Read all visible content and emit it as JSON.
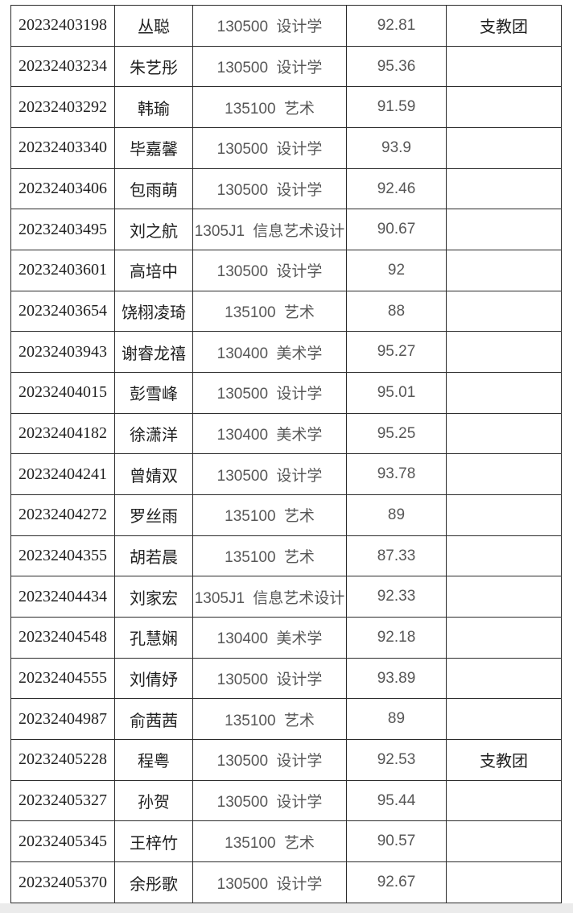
{
  "colors": {
    "text_primary": "#1f1f1f",
    "text_secondary": "#575757",
    "border": "#2b2b2b",
    "page_bg": "#ffffff",
    "footer_strip": "#ebebeb"
  },
  "table": {
    "note_label_value": "支教团",
    "rows": [
      {
        "id": "20232403198",
        "name": "丛聪",
        "major": "130500 设计学",
        "score": "92.81",
        "note": "支教团"
      },
      {
        "id": "20232403234",
        "name": "朱艺彤",
        "major": "130500 设计学",
        "score": "95.36",
        "note": ""
      },
      {
        "id": "20232403292",
        "name": "韩瑜",
        "major": "135100 艺术",
        "score": "91.59",
        "note": ""
      },
      {
        "id": "20232403340",
        "name": "毕嘉馨",
        "major": "130500 设计学",
        "score": "93.9",
        "note": ""
      },
      {
        "id": "20232403406",
        "name": "包雨萌",
        "major": "130500 设计学",
        "score": "92.46",
        "note": ""
      },
      {
        "id": "20232403495",
        "name": "刘之航",
        "major": "1305J1 信息艺术设计",
        "score": "90.67",
        "note": ""
      },
      {
        "id": "20232403601",
        "name": "高培中",
        "major": "130500 设计学",
        "score": "92",
        "note": ""
      },
      {
        "id": "20232403654",
        "name": "饶栩凌琦",
        "major": "135100 艺术",
        "score": "88",
        "note": ""
      },
      {
        "id": "20232403943",
        "name": "谢睿龙禧",
        "major": "130400 美术学",
        "score": "95.27",
        "note": ""
      },
      {
        "id": "20232404015",
        "name": "彭雪峰",
        "major": "130500 设计学",
        "score": "95.01",
        "note": ""
      },
      {
        "id": "20232404182",
        "name": "徐潇洋",
        "major": "130400 美术学",
        "score": "95.25",
        "note": ""
      },
      {
        "id": "20232404241",
        "name": "曾婧双",
        "major": "130500 设计学",
        "score": "93.78",
        "note": ""
      },
      {
        "id": "20232404272",
        "name": "罗丝雨",
        "major": "135100 艺术",
        "score": "89",
        "note": ""
      },
      {
        "id": "20232404355",
        "name": "胡若晨",
        "major": "135100 艺术",
        "score": "87.33",
        "note": ""
      },
      {
        "id": "20232404434",
        "name": "刘家宏",
        "major": "1305J1 信息艺术设计",
        "score": "92.33",
        "note": ""
      },
      {
        "id": "20232404548",
        "name": "孔慧娴",
        "major": "130400 美术学",
        "score": "92.18",
        "note": ""
      },
      {
        "id": "20232404555",
        "name": "刘倩妤",
        "major": "130500 设计学",
        "score": "93.89",
        "note": ""
      },
      {
        "id": "20232404987",
        "name": "俞茜茜",
        "major": "135100 艺术",
        "score": "89",
        "note": ""
      },
      {
        "id": "20232405228",
        "name": "程粤",
        "major": "130500 设计学",
        "score": "92.53",
        "note": "支教团"
      },
      {
        "id": "20232405327",
        "name": "孙贺",
        "major": "130500 设计学",
        "score": "95.44",
        "note": ""
      },
      {
        "id": "20232405345",
        "name": "王梓竹",
        "major": "135100 艺术",
        "score": "90.57",
        "note": ""
      },
      {
        "id": "20232405370",
        "name": "余彤歌",
        "major": "130500 设计学",
        "score": "92.67",
        "note": ""
      }
    ]
  }
}
